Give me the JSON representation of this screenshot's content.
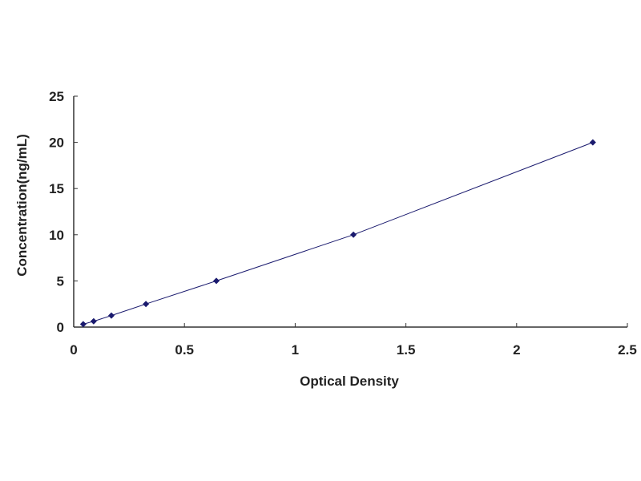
{
  "chart_data": {
    "type": "line",
    "title": "",
    "xlabel": "Optical Density",
    "ylabel": "Concentration(ng/mL)",
    "xlim": [
      0,
      2.5
    ],
    "ylim": [
      0,
      25
    ],
    "xticks": [
      "0",
      "0.5",
      "1",
      "1.5",
      "2",
      "2.5"
    ],
    "yticks": [
      "0",
      "5",
      "10",
      "15",
      "20",
      "25"
    ],
    "grid": false,
    "legend": "none",
    "series": [
      {
        "x": [
          0.043,
          0.09,
          0.17,
          0.326,
          0.644,
          1.263,
          2.344
        ],
        "y": [
          0.312,
          0.625,
          1.25,
          2.5,
          5,
          10,
          20
        ],
        "color": "#1a1a6e",
        "marker": "diamond"
      }
    ]
  }
}
